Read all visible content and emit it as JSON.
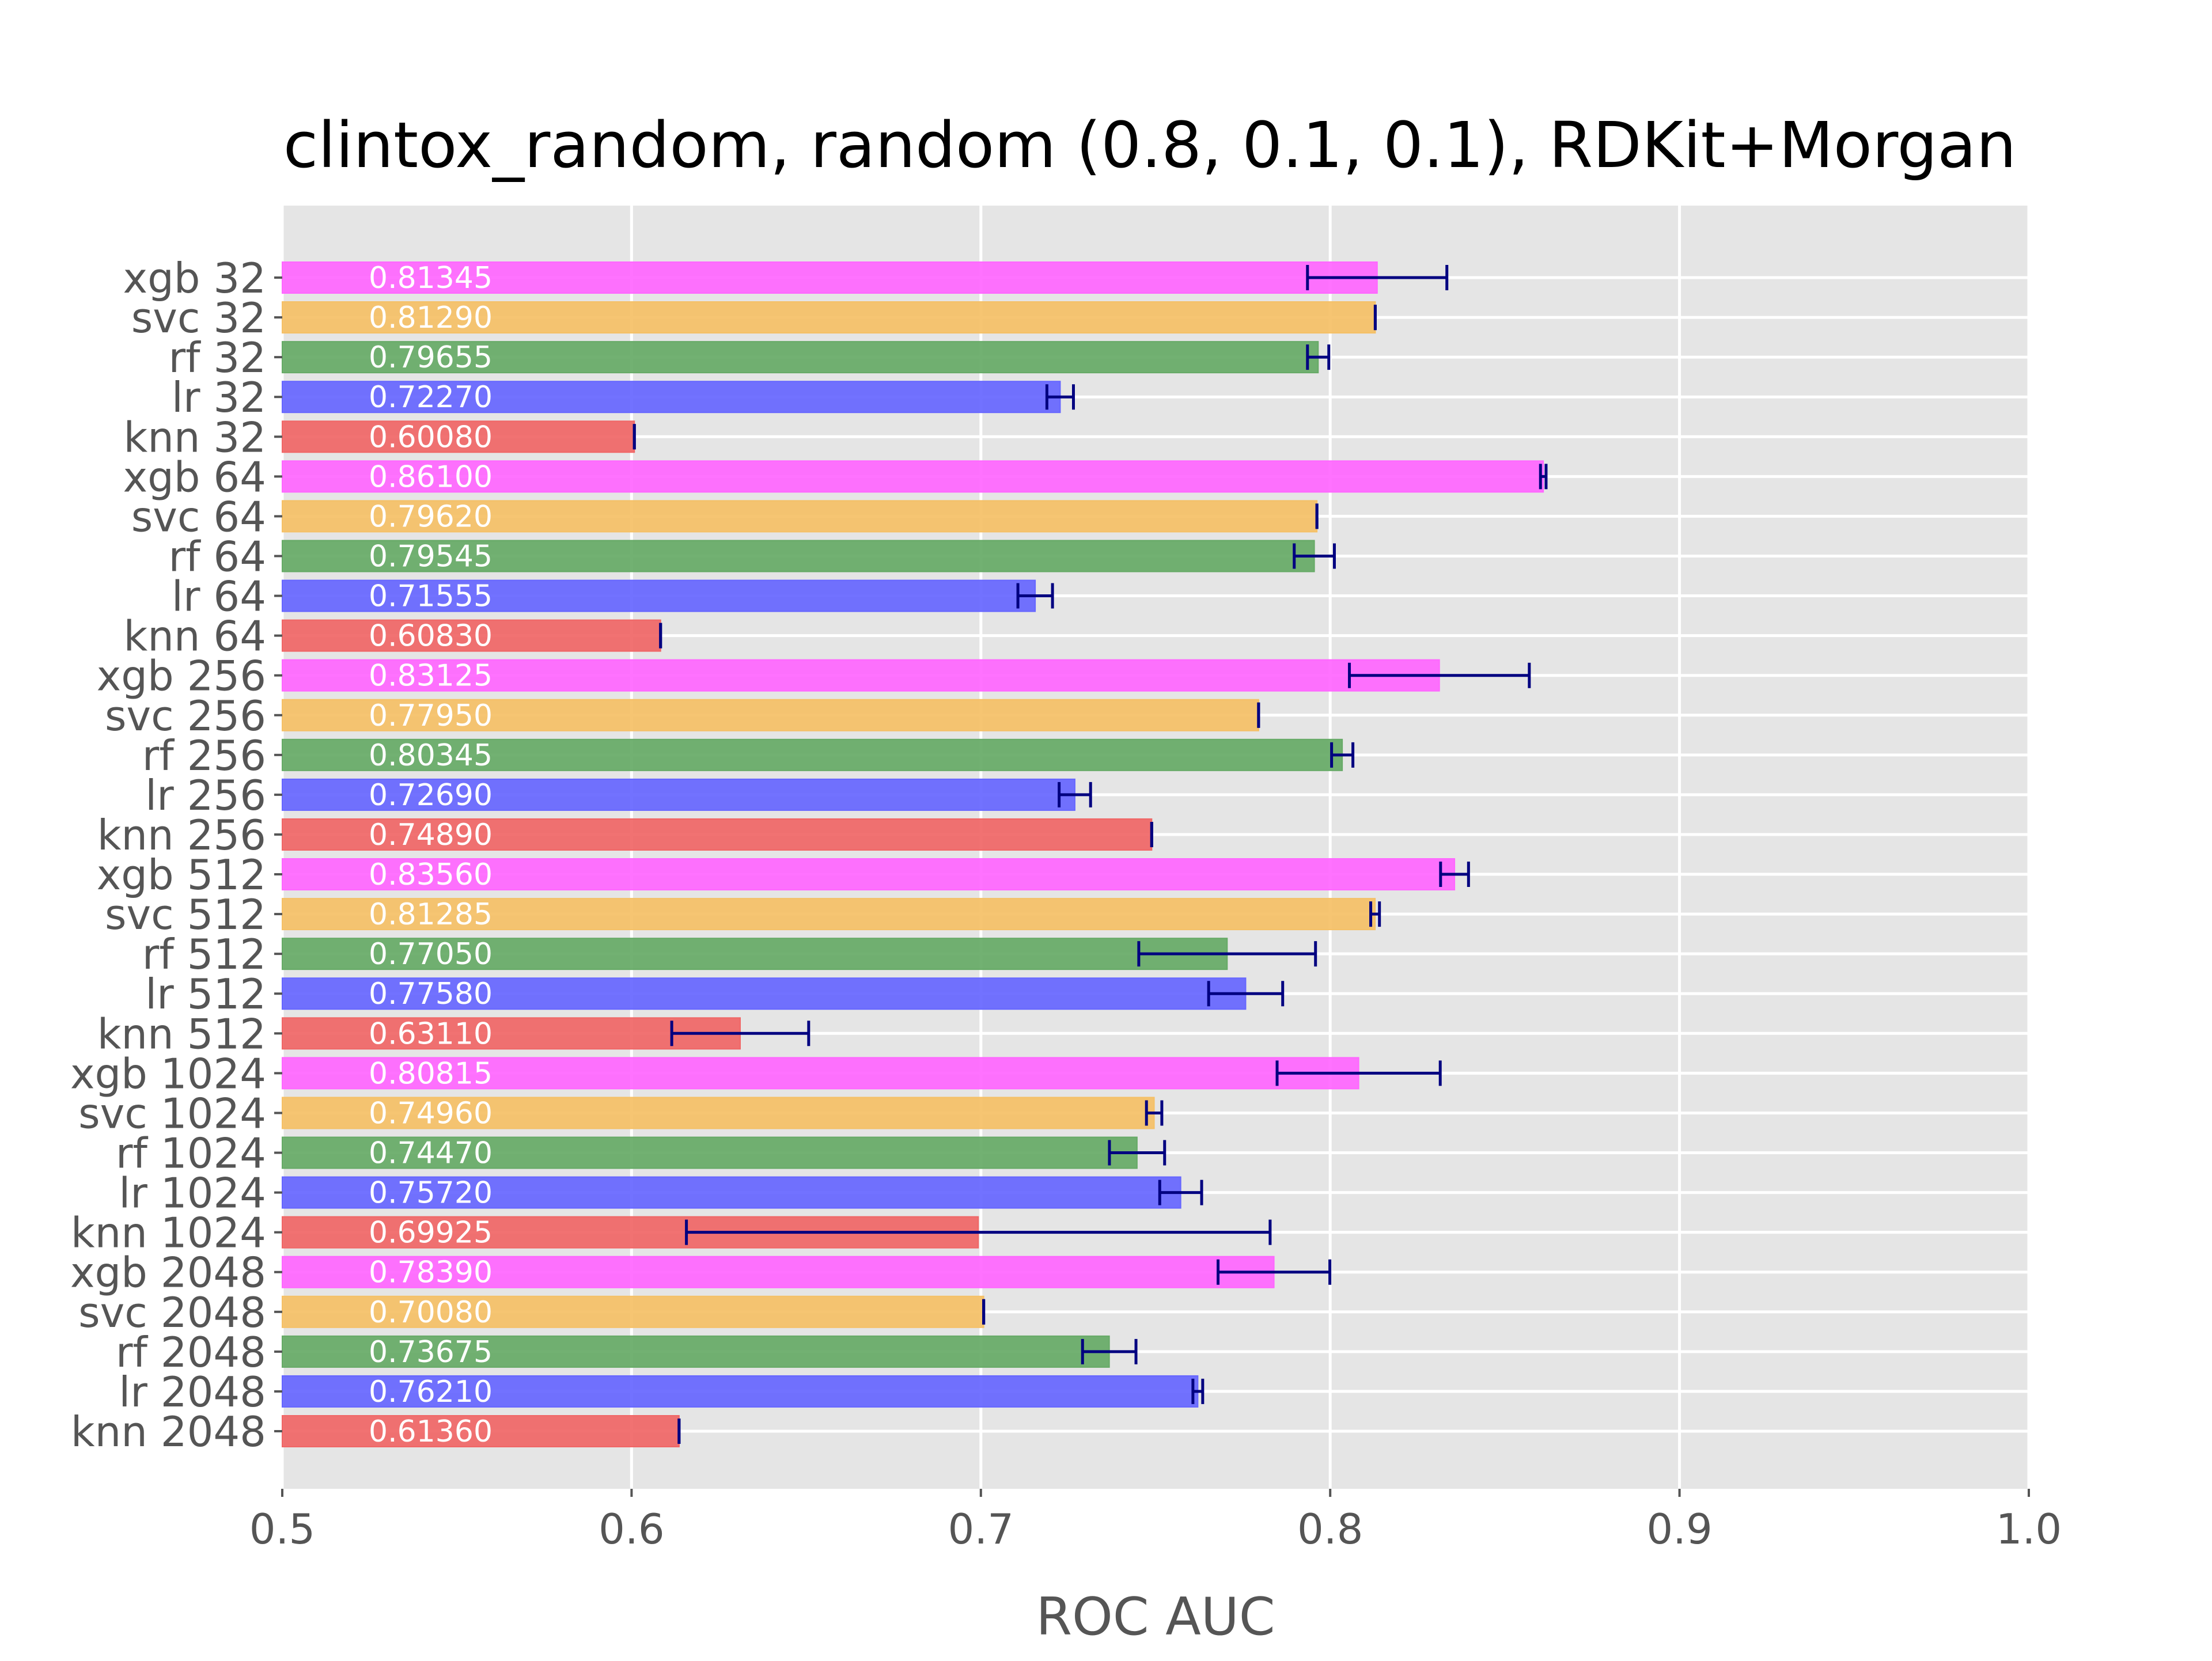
{
  "chart_data": {
    "type": "bar",
    "orientation": "horizontal",
    "title": "clintox_random, random (0.8, 0.1, 0.1), RDKit+Morgan",
    "xlabel": "ROC AUC",
    "ylabel": "",
    "xlim": [
      0.5,
      1.0
    ],
    "xticks": [
      0.5,
      0.6,
      0.7,
      0.8,
      0.9,
      1.0
    ],
    "xtick_labels": [
      "0.5",
      "0.6",
      "0.7",
      "0.8",
      "0.9",
      "1.0"
    ],
    "grid": true,
    "background": "#e5e5e5",
    "grid_color": "#ffffff",
    "errorbar_color": "#000080",
    "label_color": "#555555",
    "model_colors": {
      "xgb": "#ff66ff",
      "svc": "#f5c066",
      "rf": "#66aa66",
      "lr": "#6666ff",
      "knn": "#f06666"
    },
    "bars": [
      {
        "label": "xgb 32",
        "model": "xgb",
        "value": 0.81345,
        "text": "0.81345",
        "err_low": 0.7935,
        "err_high": 0.8334
      },
      {
        "label": "svc 32",
        "model": "svc",
        "value": 0.8129,
        "text": "0.81290",
        "err_low": 0.8129,
        "err_high": 0.8129
      },
      {
        "label": "rf 32",
        "model": "rf",
        "value": 0.79655,
        "text": "0.79655",
        "err_low": 0.7935,
        "err_high": 0.7996
      },
      {
        "label": "lr 32",
        "model": "lr",
        "value": 0.7227,
        "text": "0.72270",
        "err_low": 0.7189,
        "err_high": 0.7265
      },
      {
        "label": "knn 32",
        "model": "knn",
        "value": 0.6008,
        "text": "0.60080",
        "err_low": 0.6008,
        "err_high": 0.6008
      },
      {
        "label": "xgb 64",
        "model": "xgb",
        "value": 0.861,
        "text": "0.86100",
        "err_low": 0.8602,
        "err_high": 0.8618
      },
      {
        "label": "svc 64",
        "model": "svc",
        "value": 0.7962,
        "text": "0.79620",
        "err_low": 0.7962,
        "err_high": 0.7962
      },
      {
        "label": "rf 64",
        "model": "rf",
        "value": 0.79545,
        "text": "0.79545",
        "err_low": 0.7897,
        "err_high": 0.8012
      },
      {
        "label": "lr 64",
        "model": "lr",
        "value": 0.71555,
        "text": "0.71555",
        "err_low": 0.7106,
        "err_high": 0.7205
      },
      {
        "label": "knn 64",
        "model": "knn",
        "value": 0.6083,
        "text": "0.60830",
        "err_low": 0.6083,
        "err_high": 0.6083
      },
      {
        "label": "xgb 256",
        "model": "xgb",
        "value": 0.83125,
        "text": "0.83125",
        "err_low": 0.8055,
        "err_high": 0.857
      },
      {
        "label": "svc 256",
        "model": "svc",
        "value": 0.7795,
        "text": "0.77950",
        "err_low": 0.7795,
        "err_high": 0.7795
      },
      {
        "label": "rf 256",
        "model": "rf",
        "value": 0.80345,
        "text": "0.80345",
        "err_low": 0.8004,
        "err_high": 0.8065
      },
      {
        "label": "lr 256",
        "model": "lr",
        "value": 0.7269,
        "text": "0.72690",
        "err_low": 0.7224,
        "err_high": 0.7314
      },
      {
        "label": "knn 256",
        "model": "knn",
        "value": 0.7489,
        "text": "0.74890",
        "err_low": 0.7489,
        "err_high": 0.7489
      },
      {
        "label": "xgb 512",
        "model": "xgb",
        "value": 0.8356,
        "text": "0.83560",
        "err_low": 0.8316,
        "err_high": 0.8396
      },
      {
        "label": "svc 512",
        "model": "svc",
        "value": 0.81285,
        "text": "0.81285",
        "err_low": 0.8116,
        "err_high": 0.8141
      },
      {
        "label": "rf 512",
        "model": "rf",
        "value": 0.7705,
        "text": "0.77050",
        "err_low": 0.7452,
        "err_high": 0.7958
      },
      {
        "label": "lr 512",
        "model": "lr",
        "value": 0.7758,
        "text": "0.77580",
        "err_low": 0.7652,
        "err_high": 0.7864
      },
      {
        "label": "knn 512",
        "model": "knn",
        "value": 0.6311,
        "text": "0.63110",
        "err_low": 0.6115,
        "err_high": 0.6507
      },
      {
        "label": "xgb 1024",
        "model": "xgb",
        "value": 0.80815,
        "text": "0.80815",
        "err_low": 0.7848,
        "err_high": 0.8315
      },
      {
        "label": "svc 1024",
        "model": "svc",
        "value": 0.7496,
        "text": "0.74960",
        "err_low": 0.7474,
        "err_high": 0.7518
      },
      {
        "label": "rf 1024",
        "model": "rf",
        "value": 0.7447,
        "text": "0.74470",
        "err_low": 0.7368,
        "err_high": 0.7526
      },
      {
        "label": "lr 1024",
        "model": "lr",
        "value": 0.7572,
        "text": "0.75720",
        "err_low": 0.7512,
        "err_high": 0.7632
      },
      {
        "label": "knn 1024",
        "model": "knn",
        "value": 0.69925,
        "text": "0.69925",
        "err_low": 0.6157,
        "err_high": 0.7828
      },
      {
        "label": "xgb 2048",
        "model": "xgb",
        "value": 0.7839,
        "text": "0.78390",
        "err_low": 0.7679,
        "err_high": 0.7999
      },
      {
        "label": "svc 2048",
        "model": "svc",
        "value": 0.7008,
        "text": "0.70080",
        "err_low": 0.7008,
        "err_high": 0.7008
      },
      {
        "label": "rf 2048",
        "model": "rf",
        "value": 0.73675,
        "text": "0.73675",
        "err_low": 0.7291,
        "err_high": 0.7444
      },
      {
        "label": "lr 2048",
        "model": "lr",
        "value": 0.7621,
        "text": "0.76210",
        "err_low": 0.7607,
        "err_high": 0.7635
      },
      {
        "label": "knn 2048",
        "model": "knn",
        "value": 0.6136,
        "text": "0.61360",
        "err_low": 0.6136,
        "err_high": 0.6136
      }
    ]
  }
}
